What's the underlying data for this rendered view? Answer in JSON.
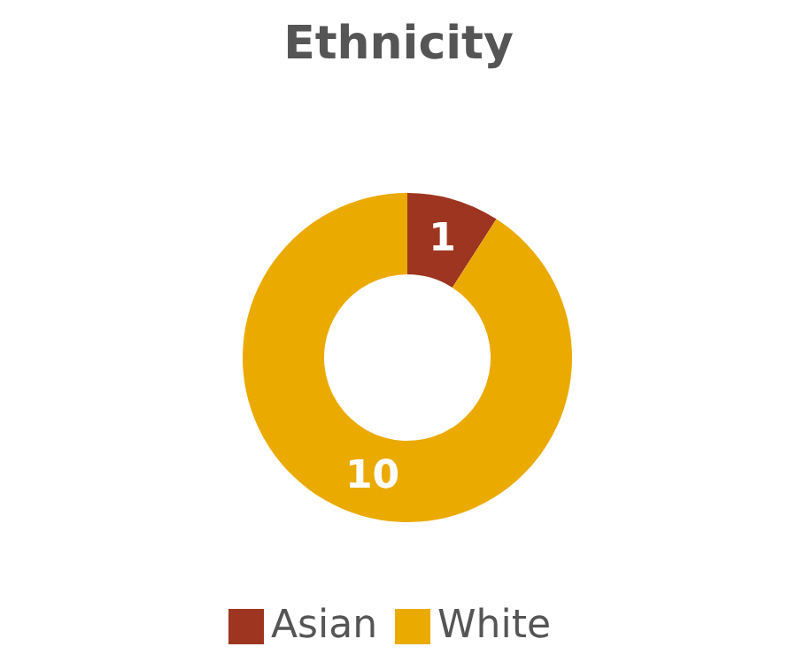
{
  "chart_data": {
    "type": "donut",
    "title": "Ethnicity",
    "categories": [
      "Asian",
      "White"
    ],
    "values": [
      1,
      10
    ],
    "colors": [
      "#9e3520",
      "#ebaa00"
    ],
    "data_labels": true,
    "legend": "bottom"
  }
}
